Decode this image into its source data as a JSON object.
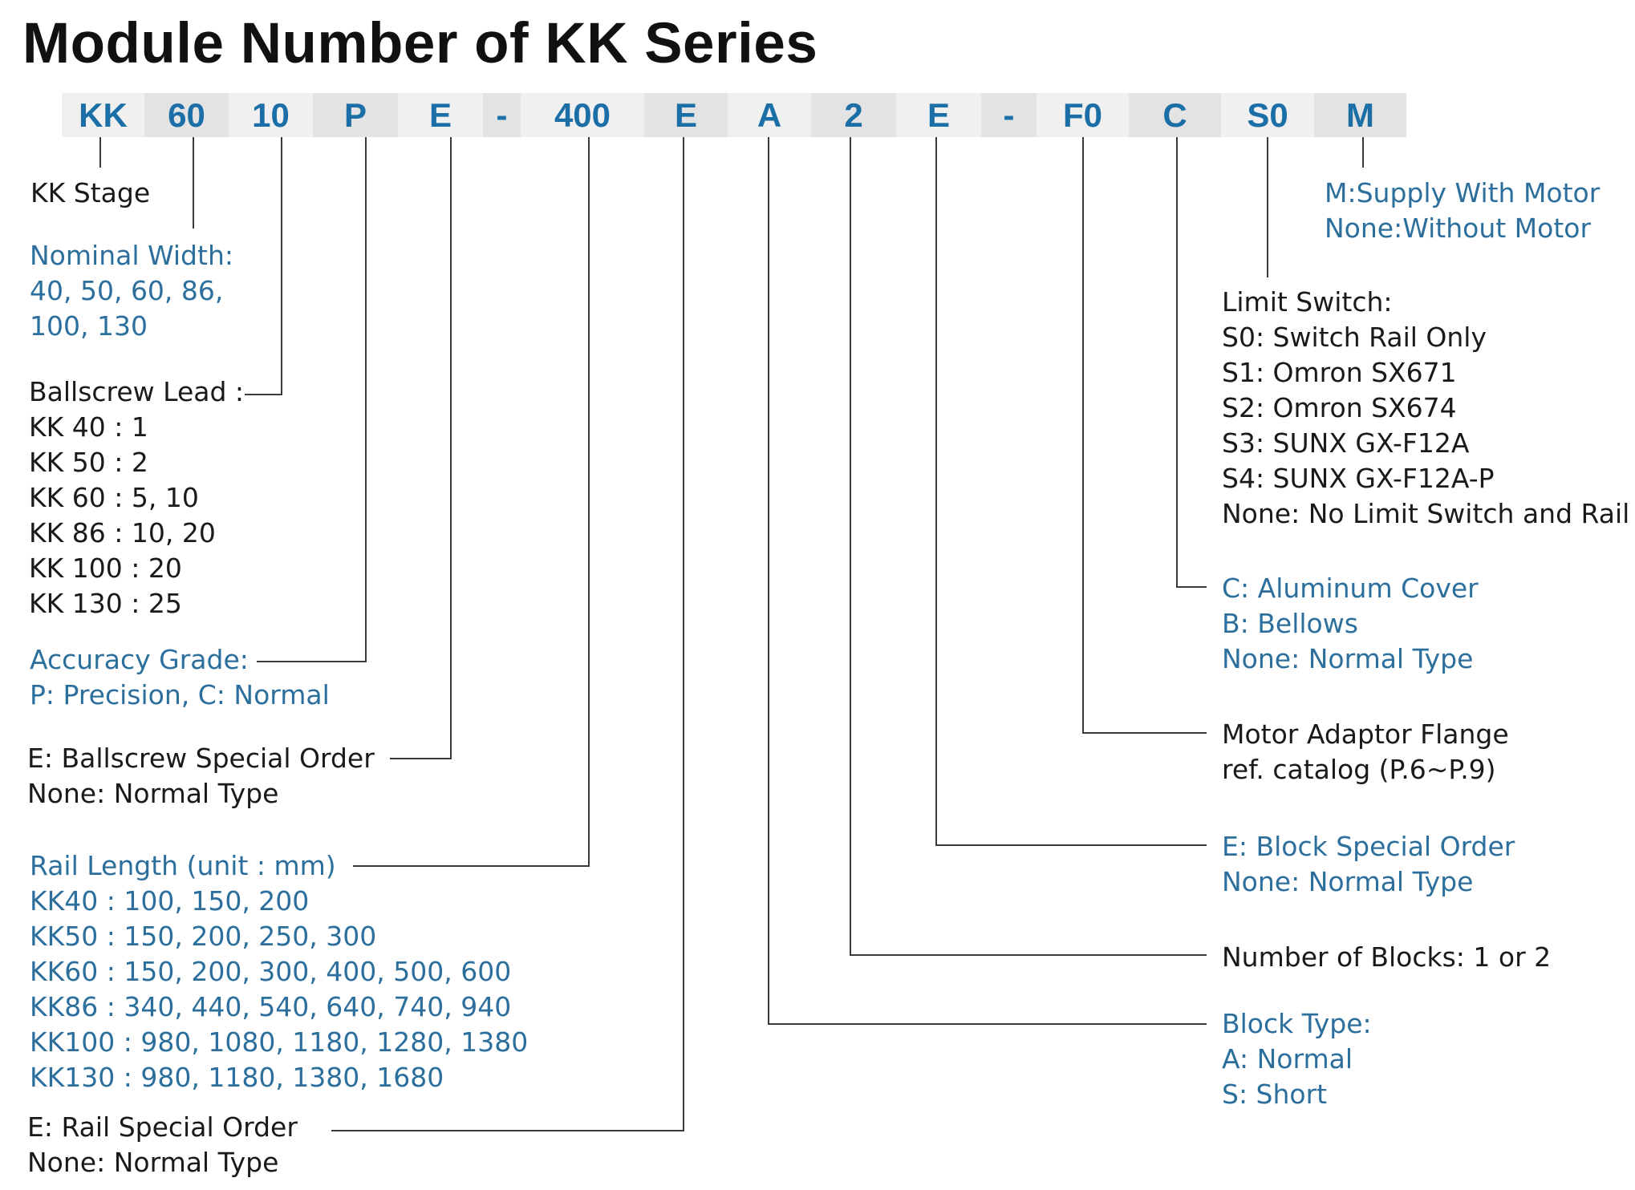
{
  "title": "Module Number of KK Series",
  "code_segments": [
    "KK",
    "60",
    "10",
    "P",
    "E",
    "-",
    "400",
    "E",
    "A",
    "2",
    "E",
    "-",
    "F0",
    "C",
    "S0",
    "M"
  ],
  "colors": {
    "blue_text": "#2c6f9d",
    "code_text": "#1b6fa6",
    "black_text": "#1a1a1a",
    "bar_shade": "#e3e3e3",
    "bar_light": "#f0f0f0"
  },
  "descriptions": {
    "kk_stage": [
      "KK Stage"
    ],
    "nominal_width": [
      "Nominal Width:",
      "40, 50, 60, 86,",
      "100, 130"
    ],
    "ballscrew_lead": [
      "Ballscrew Lead :",
      "KK 40 : 1",
      "KK 50 : 2",
      "KK 60 : 5, 10",
      "KK 86 : 10, 20",
      "KK 100 : 20",
      "KK 130 : 25"
    ],
    "accuracy_grade": [
      "Accuracy Grade:",
      "P: Precision, C: Normal"
    ],
    "ballscrew_special": [
      "E: Ballscrew Special Order",
      "None: Normal Type"
    ],
    "rail_length": [
      "Rail Length (unit : mm)",
      "KK40 : 100, 150, 200",
      "KK50 : 150, 200, 250, 300",
      "KK60 : 150, 200, 300,  400,  500, 600",
      "KK86 : 340, 440, 540, 640, 740, 940",
      "KK100 : 980, 1080, 1180, 1280, 1380",
      "KK130 : 980, 1180, 1380, 1680"
    ],
    "rail_special": [
      "E: Rail Special Order",
      "None: Normal Type"
    ],
    "motor": [
      "M:Supply With Motor",
      "None:Without Motor"
    ],
    "limit_switch": [
      "Limit Switch:",
      "S0: Switch Rail Only",
      "S1: Omron SX671",
      "S2: Omron SX674",
      "S3: SUNX GX-F12A",
      "S4: SUNX GX-F12A-P",
      "None: No Limit Switch and Rail"
    ],
    "cover": [
      "C: Aluminum Cover",
      "B: Bellows",
      "None: Normal Type"
    ],
    "motor_flange": [
      "Motor Adaptor Flange",
      "ref. catalog (P.6~P.9)"
    ],
    "block_special": [
      "E: Block Special Order",
      "None: Normal Type"
    ],
    "block_count": [
      "Number of Blocks: 1 or 2"
    ],
    "block_type": [
      "Block Type:",
      "A: Normal",
      "S: Short"
    ]
  }
}
